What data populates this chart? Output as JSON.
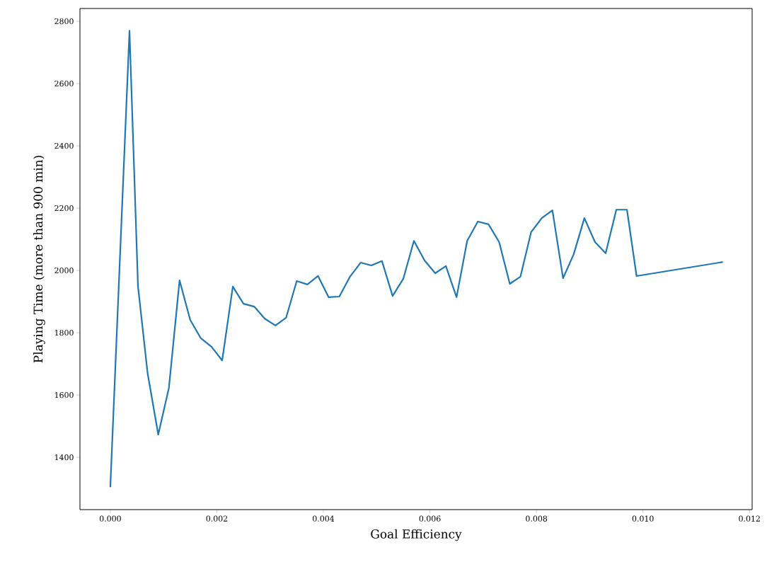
{
  "chart_data": {
    "type": "line",
    "xlabel": "Goal Efficiency",
    "ylabel": "Playing Time (more than 900 min)",
    "x": [
      0,
      0.00036,
      0.00052,
      0.0007,
      0.0009,
      0.0011,
      0.0013,
      0.0015,
      0.0017,
      0.0019,
      0.0021,
      0.0023,
      0.0025,
      0.0027,
      0.0029,
      0.0031,
      0.0033,
      0.0035,
      0.0037,
      0.0039,
      0.0041,
      0.0043,
      0.0045,
      0.0047,
      0.0049,
      0.0051,
      0.0053,
      0.0055,
      0.0057,
      0.0059,
      0.0061,
      0.0063,
      0.0065,
      0.0067,
      0.0069,
      0.0071,
      0.0073,
      0.0075,
      0.0077,
      0.0079,
      0.0081,
      0.0083,
      0.0085,
      0.0087,
      0.0089,
      0.0091,
      0.0093,
      0.0095,
      0.0097,
      0.00988,
      0.0115
    ],
    "series": [
      {
        "color": "#1f77b4",
        "values": [
          1304,
          2770,
          1948,
          1670,
          1473,
          1623,
          1968,
          1841,
          1782,
          1755,
          1711,
          1948,
          1893,
          1884,
          1845,
          1823,
          1848,
          1966,
          1955,
          1982,
          1914,
          1916,
          1980,
          2025,
          2016,
          2030,
          1918,
          1973,
          2095,
          2032,
          1991,
          2014,
          1914,
          2095,
          2157,
          2148,
          2091,
          1957,
          1980,
          2123,
          2168,
          2193,
          1975,
          2052,
          2168,
          2091,
          2055,
          2195,
          2195,
          1982,
          2027
        ]
      }
    ],
    "xlim": [
      -0.00057,
      0.01205
    ],
    "ylim": [
      1232,
      2841
    ],
    "xticks": [
      {
        "value": 0,
        "label": "0.000"
      },
      {
        "value": 0.002,
        "label": "0.002"
      },
      {
        "value": 0.004,
        "label": "0.004"
      },
      {
        "value": 0.006,
        "label": "0.006"
      },
      {
        "value": 0.008,
        "label": "0.008"
      },
      {
        "value": 0.01,
        "label": "0.010"
      },
      {
        "value": 0.012,
        "label": "0.012"
      }
    ],
    "yticks": [
      1400,
      1600,
      1800,
      2000,
      2200,
      2400,
      2600,
      2800
    ],
    "grid": false,
    "marker": "none",
    "line_style": "solid"
  }
}
